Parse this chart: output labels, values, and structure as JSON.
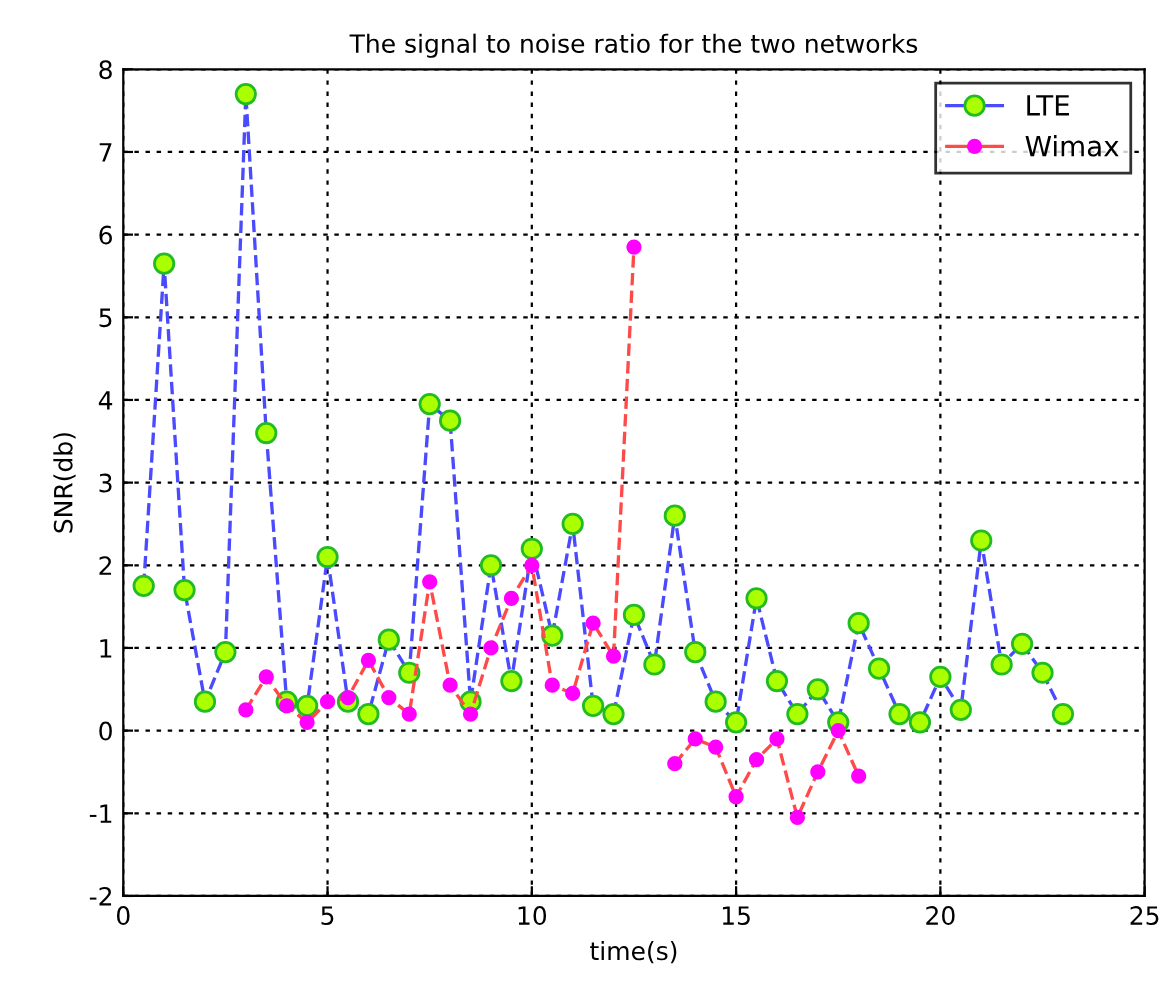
{
  "chart_data": {
    "type": "line",
    "title": "The signal to noise ratio for the two networks",
    "xlabel": "time(s)",
    "ylabel": "SNR(db)",
    "xlim": [
      0,
      25
    ],
    "xticks": [
      0,
      5,
      10,
      15,
      20,
      25
    ],
    "ylim": [
      -2,
      8
    ],
    "yticks": [
      -2,
      -1,
      0,
      1,
      2,
      3,
      4,
      5,
      6,
      7,
      8
    ],
    "grid": true,
    "legend": "top right",
    "marker": "circle",
    "line_style": "dashed",
    "series": [
      {
        "name": "LTE",
        "color": "#4a4aff",
        "x": [
          0.5,
          1,
          1.5,
          2,
          2.5,
          3,
          3.5,
          4,
          4.5,
          5,
          5.5,
          6,
          6.5,
          7,
          7.5,
          8,
          8.5,
          9,
          9.5,
          10,
          10.5,
          11,
          11.5,
          12,
          12.5,
          13,
          13.5,
          14,
          14.5,
          15,
          15.5,
          16,
          16.5,
          17,
          17.5,
          18,
          18.5,
          19,
          19.5,
          20,
          20.5,
          21,
          21.5,
          22,
          22.5,
          23
        ],
        "values": [
          1.75,
          5.65,
          1.7,
          0.35,
          0.95,
          7.7,
          3.6,
          0.35,
          0.3,
          2.1,
          0.35,
          0.2,
          1.1,
          0.7,
          3.95,
          3.75,
          0.35,
          2.0,
          0.6,
          2.2,
          1.15,
          2.5,
          0.3,
          0.2,
          1.4,
          0.8,
          2.6,
          0.95,
          0.35,
          0.1,
          1.6,
          0.6,
          0.2,
          0.5,
          0.1,
          1.3,
          0.75,
          0.2,
          0.1,
          0.65,
          0.25,
          2.3,
          0.8,
          1.05,
          0.7,
          0.2
        ]
      },
      {
        "name": "Wimax",
        "color": "#ff4a4a",
        "x": [
          3,
          3.5,
          4,
          4.5,
          5,
          5.5,
          6,
          6.5,
          7,
          7.5,
          8,
          8.5,
          9,
          9.5,
          10,
          10.5,
          11,
          11.5,
          12,
          12.5,
          13,
          13.5,
          14,
          14.5,
          15,
          15.5,
          16,
          16.5,
          17,
          17.5,
          18
        ],
        "values": [
          0.25,
          0.65,
          0.3,
          0.1,
          0.35,
          0.4,
          0.85,
          0.4,
          0.2,
          1.8,
          0.55,
          0.2,
          1.0,
          1.6,
          2.0,
          0.55,
          0.45,
          1.3,
          0.9,
          5.85,
          null,
          -0.4,
          -0.1,
          -0.2,
          -0.8,
          -0.35,
          -0.1,
          -1.05,
          -0.5,
          0.0,
          -0.55
        ]
      }
    ]
  }
}
